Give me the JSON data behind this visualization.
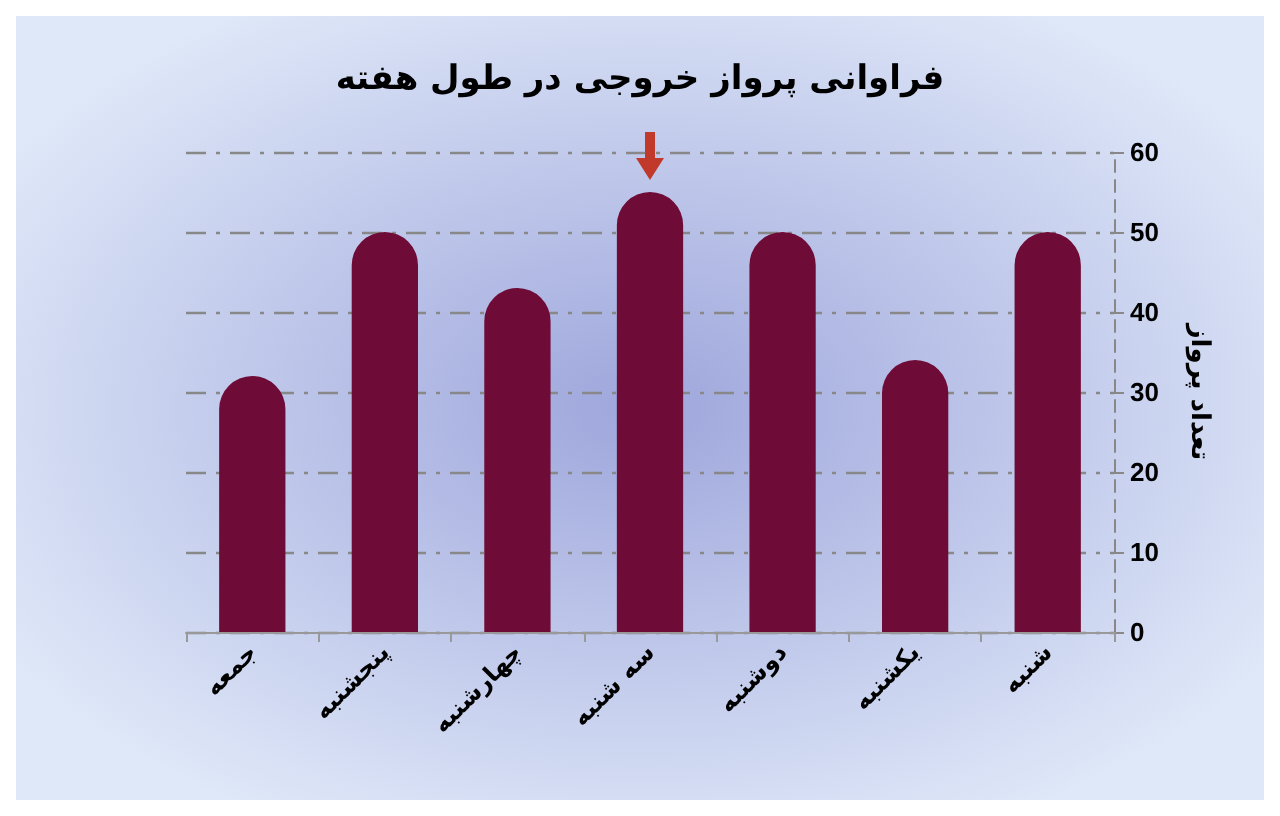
{
  "chart_data": {
    "type": "bar",
    "title": "فراوانی پرواز خروجی در طول هفته",
    "ylabel": "تعداد پرواز",
    "categories": [
      "جمعه",
      "پنجشنبه",
      "چهارشنبه",
      "سه شنبه",
      "دوشنبه",
      "یکشنبه",
      "شنبه"
    ],
    "values": [
      32,
      50,
      43,
      55,
      50,
      34,
      50
    ],
    "color": "#6e0b36",
    "ylim": [
      0,
      60
    ],
    "yticks": [
      0,
      10,
      20,
      30,
      40,
      50,
      60
    ],
    "grid": "y"
  }
}
